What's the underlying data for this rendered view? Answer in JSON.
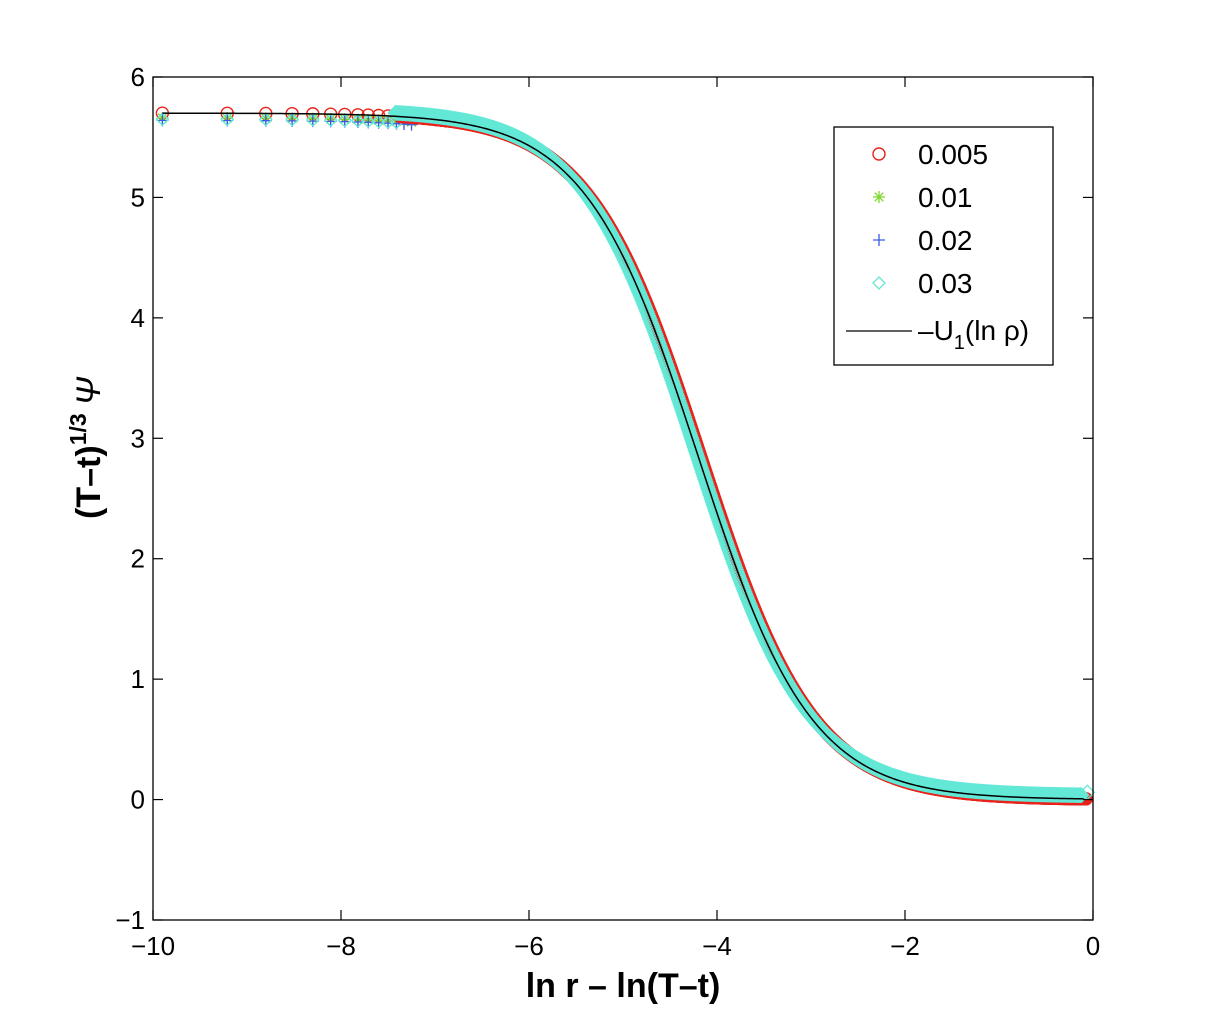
{
  "chart_data": {
    "type": "scatter",
    "xlabel": "ln r – ln(T–t)",
    "ylabel_base": "(T–t)",
    "ylabel_exp": "1/3",
    "ylabel_symbol": "Ψ",
    "xlim": [
      -10,
      0
    ],
    "ylim": [
      -1,
      6
    ],
    "xticks": [
      -10,
      -8,
      -6,
      -4,
      -2,
      0
    ],
    "xtick_labels": [
      "−10",
      "−8",
      "−6",
      "−4",
      "−2",
      "0"
    ],
    "yticks": [
      -1,
      0,
      1,
      2,
      3,
      4,
      5,
      6
    ],
    "ytick_labels": [
      "−1",
      "0",
      "1",
      "2",
      "3",
      "4",
      "5",
      "6"
    ],
    "grid": false,
    "legend_position": "top-right",
    "curve_params": {
      "plateau": 5.7,
      "center": -4.2,
      "width": 0.6
    },
    "series": [
      {
        "name": "0.005",
        "marker": "circle",
        "color": "#e8231a",
        "offset": 0.0,
        "x": [
          -9.9,
          -9.21,
          -8.8,
          -8.52,
          -8.3,
          -8.11,
          -7.96,
          -7.82,
          -7.71,
          -7.6,
          -7.5,
          -7.41,
          -7.33,
          -7.25,
          -7.18,
          -7.11,
          -7.05,
          -6.99,
          -6.93,
          -6.88
        ]
      },
      {
        "name": "0.01",
        "marker": "asterisk",
        "color": "#7fd82a",
        "offset": -0.04,
        "x": [
          -9.9,
          -9.21,
          -8.8,
          -8.52,
          -8.3,
          -8.11,
          -7.96,
          -7.82,
          -7.71,
          -7.6,
          -7.5,
          -7.41,
          -7.33,
          -7.25
        ]
      },
      {
        "name": "0.02",
        "marker": "plus",
        "color": "#3a5ae8",
        "offset": -0.06,
        "x": [
          -9.9,
          -9.21,
          -8.8,
          -8.52,
          -8.3,
          -8.11,
          -7.96,
          -7.82,
          -7.71,
          -7.6,
          -7.5,
          -7.41,
          -7.33,
          -7.25
        ]
      },
      {
        "name": "0.03",
        "marker": "diamond",
        "color": "#63e8d6",
        "offset": -0.05,
        "x": [
          -9.9,
          -9.21,
          -8.8,
          -8.52,
          -8.3,
          -8.11,
          -7.96,
          -7.82,
          -7.71,
          -7.6,
          -7.5,
          -7.41
        ]
      }
    ],
    "dense_x_range": [
      -7.4,
      -0.1
    ],
    "line": {
      "name": "–U",
      "subscript": "1",
      "suffix": "(ln ρ)",
      "color": "#000000"
    }
  }
}
